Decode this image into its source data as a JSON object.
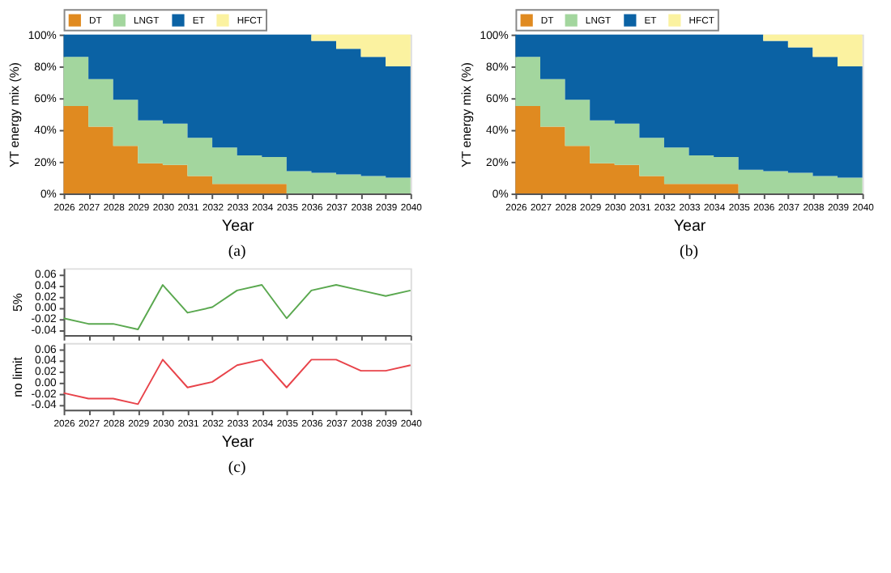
{
  "chart_data": [
    {
      "type": "area",
      "stacked": true,
      "xlabel": "Year",
      "ylabel": "YT energy mix (%)",
      "legend": "top",
      "grid": false,
      "annotations": [
        "(a)"
      ],
      "x": [
        2026,
        2027,
        2028,
        2029,
        2030,
        2031,
        2032,
        2033,
        2034,
        2035,
        2036,
        2037,
        2038,
        2039,
        2040
      ],
      "xlim": [
        2026,
        2040
      ],
      "xticks": [
        2026,
        2027,
        2028,
        2029,
        2030,
        2031,
        2032,
        2033,
        2034,
        2035,
        2036,
        2037,
        2038,
        2039,
        2040
      ],
      "ylim": [
        0,
        100
      ],
      "yticks": [
        {
          "value": 0,
          "label": "0%"
        },
        {
          "value": 20,
          "label": "20%"
        },
        {
          "value": 40,
          "label": "40%"
        },
        {
          "value": 60,
          "label": "60%"
        },
        {
          "value": 80,
          "label": "80%"
        },
        {
          "value": 100,
          "label": "100%"
        }
      ],
      "series": [
        {
          "name": "DT",
          "color": "#e08a20",
          "values": [
            55,
            42,
            30,
            19,
            18,
            11,
            6,
            6,
            6,
            0,
            0,
            0,
            0,
            0,
            0
          ]
        },
        {
          "name": "LNGT",
          "color": "#a3d69e",
          "values": [
            31,
            30,
            29,
            27,
            26,
            24,
            23,
            18,
            17,
            14,
            13,
            12,
            11,
            10,
            10
          ]
        },
        {
          "name": "ET",
          "color": "#0b62a4",
          "values": [
            14,
            28,
            41,
            54,
            56,
            65,
            71,
            76,
            77,
            86,
            83,
            79,
            75,
            70,
            70
          ]
        },
        {
          "name": "HFCT",
          "color": "#fbf2a0",
          "values": [
            0,
            0,
            0,
            0,
            0,
            0,
            0,
            0,
            0,
            0,
            4,
            9,
            14,
            20,
            20
          ]
        }
      ]
    },
    {
      "type": "area",
      "stacked": true,
      "xlabel": "Year",
      "ylabel": "YT energy mix (%)",
      "legend": "top",
      "grid": false,
      "annotations": [
        "(b)"
      ],
      "x": [
        2026,
        2027,
        2028,
        2029,
        2030,
        2031,
        2032,
        2033,
        2034,
        2035,
        2036,
        2037,
        2038,
        2039,
        2040
      ],
      "xlim": [
        2026,
        2040
      ],
      "xticks": [
        2026,
        2027,
        2028,
        2029,
        2030,
        2031,
        2032,
        2033,
        2034,
        2035,
        2036,
        2037,
        2038,
        2039,
        2040
      ],
      "ylim": [
        0,
        100
      ],
      "yticks": [
        {
          "value": 0,
          "label": "0%"
        },
        {
          "value": 20,
          "label": "20%"
        },
        {
          "value": 40,
          "label": "40%"
        },
        {
          "value": 60,
          "label": "60%"
        },
        {
          "value": 80,
          "label": "80%"
        },
        {
          "value": 100,
          "label": "100%"
        }
      ],
      "series": [
        {
          "name": "DT",
          "color": "#e08a20",
          "values": [
            55,
            42,
            30,
            19,
            18,
            11,
            6,
            6,
            6,
            0,
            0,
            0,
            0,
            0,
            0
          ]
        },
        {
          "name": "LNGT",
          "color": "#a3d69e",
          "values": [
            31,
            30,
            29,
            27,
            26,
            24,
            23,
            18,
            17,
            15,
            14,
            13,
            11,
            10,
            10
          ]
        },
        {
          "name": "ET",
          "color": "#0b62a4",
          "values": [
            14,
            28,
            41,
            54,
            56,
            65,
            71,
            76,
            77,
            85,
            82,
            79,
            75,
            70,
            70
          ]
        },
        {
          "name": "HFCT",
          "color": "#fbf2a0",
          "values": [
            0,
            0,
            0,
            0,
            0,
            0,
            0,
            0,
            0,
            0,
            4,
            8,
            14,
            20,
            20
          ]
        }
      ]
    },
    {
      "type": "line",
      "ylabel": "5%",
      "grid": false,
      "tick_labels": "y",
      "x": [
        2026,
        2027,
        2028,
        2029,
        2030,
        2031,
        2032,
        2033,
        2034,
        2035,
        2036,
        2037,
        2038,
        2039,
        2040
      ],
      "xlim": [
        2026,
        2040
      ],
      "xticks": [
        2026,
        2027,
        2028,
        2029,
        2030,
        2031,
        2032,
        2033,
        2034,
        2035,
        2036,
        2037,
        2038,
        2039,
        2040
      ],
      "ylim": [
        -0.05,
        0.07
      ],
      "yticks": [
        {
          "value": -0.04,
          "label": "-0.04"
        },
        {
          "value": -0.02,
          "label": "-0.02"
        },
        {
          "value": 0,
          "label": "0.00"
        },
        {
          "value": 0.02,
          "label": "0.02"
        },
        {
          "value": 0.04,
          "label": "0.04"
        },
        {
          "value": 0.06,
          "label": "0.06"
        }
      ],
      "series": [
        {
          "color": "#5aa84f",
          "values": [
            -0.02,
            -0.03,
            -0.03,
            -0.04,
            0.04,
            -0.01,
            0.0,
            0.03,
            0.04,
            -0.02,
            0.03,
            0.04,
            0.03,
            0.02,
            0.03
          ]
        }
      ]
    },
    {
      "type": "line",
      "xlabel": "Year",
      "ylabel": "no limit",
      "grid": false,
      "annotations": [
        "(c)"
      ],
      "x": [
        2026,
        2027,
        2028,
        2029,
        2030,
        2031,
        2032,
        2033,
        2034,
        2035,
        2036,
        2037,
        2038,
        2039,
        2040
      ],
      "xlim": [
        2026,
        2040
      ],
      "xticks": [
        2026,
        2027,
        2028,
        2029,
        2030,
        2031,
        2032,
        2033,
        2034,
        2035,
        2036,
        2037,
        2038,
        2039,
        2040
      ],
      "ylim": [
        -0.05,
        0.07
      ],
      "yticks": [
        {
          "value": -0.04,
          "label": "-0.04"
        },
        {
          "value": -0.02,
          "label": "-0.02"
        },
        {
          "value": 0,
          "label": "0.00"
        },
        {
          "value": 0.02,
          "label": "0.02"
        },
        {
          "value": 0.04,
          "label": "0.04"
        },
        {
          "value": 0.06,
          "label": "0.06"
        }
      ],
      "series": [
        {
          "color": "#e8434a",
          "values": [
            -0.02,
            -0.03,
            -0.03,
            -0.04,
            0.04,
            -0.01,
            0.0,
            0.03,
            0.04,
            -0.01,
            0.04,
            0.04,
            0.02,
            0.02,
            0.03
          ]
        }
      ]
    }
  ]
}
